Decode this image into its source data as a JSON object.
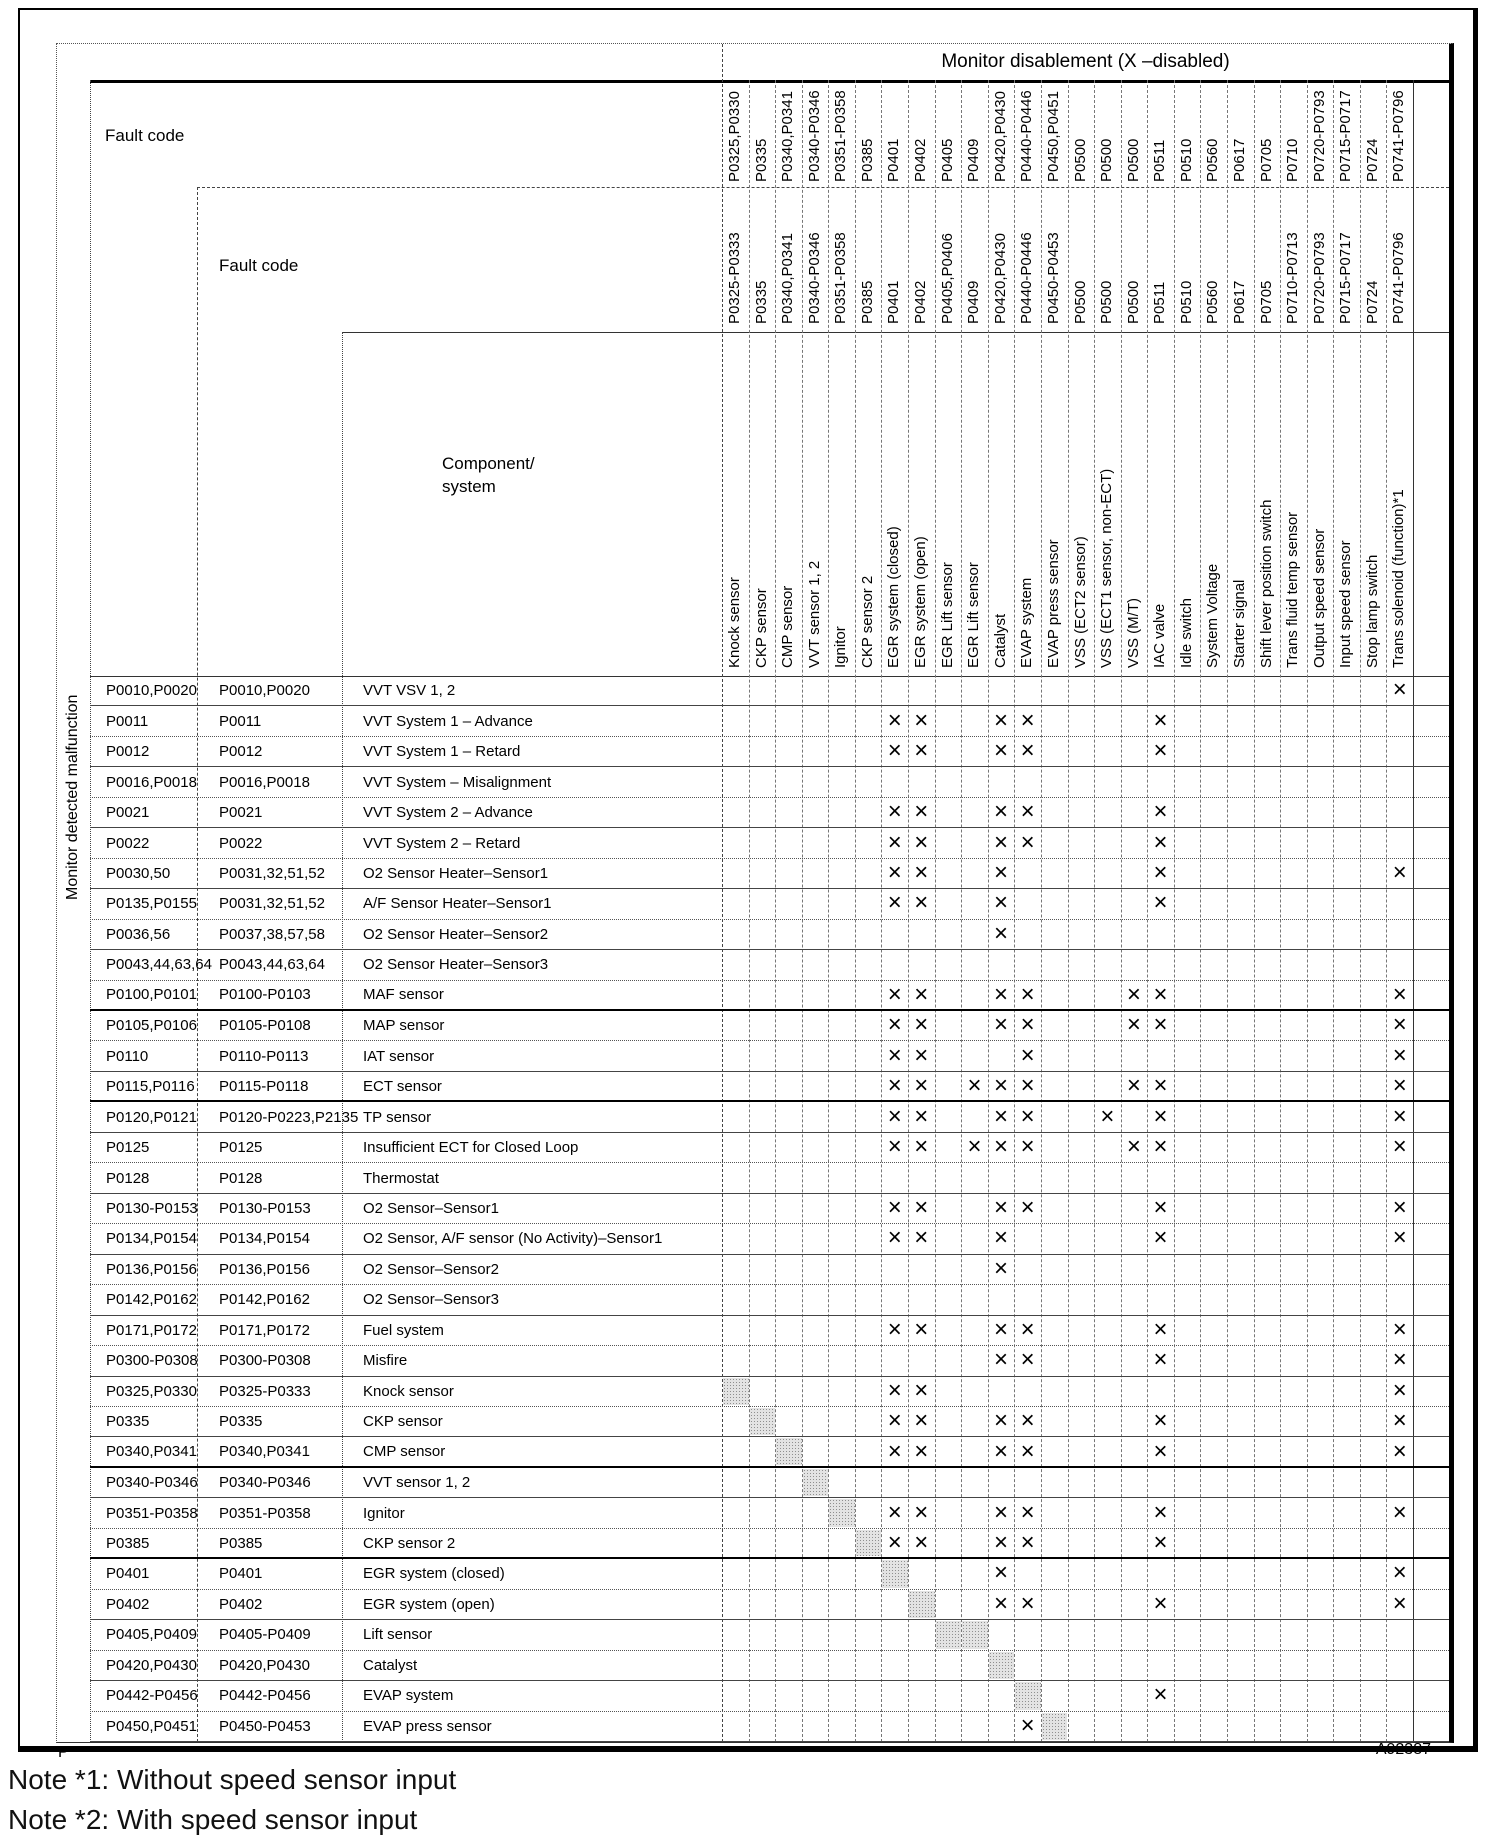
{
  "table": {
    "title": "Monitor disablement (X –disabled)",
    "fault_code_label_1": "Fault code",
    "fault_code_label_2": "Fault code",
    "component_label_line1": "Component/",
    "component_label_line2": "system",
    "left_axis_label": "Monitor detected malfunction",
    "columns": [
      {
        "code_row1": "P0325,P0330",
        "code_row2": "P0325-P0333",
        "name": "Knock sensor"
      },
      {
        "code_row1": "P0335",
        "code_row2": "P0335",
        "name": "CKP sensor"
      },
      {
        "code_row1": "P0340,P0341",
        "code_row2": "P0340,P0341",
        "name": "CMP sensor"
      },
      {
        "code_row1": "P0340-P0346",
        "code_row2": "P0340-P0346",
        "name": "VVT sensor 1, 2"
      },
      {
        "code_row1": "P0351-P0358",
        "code_row2": "P0351-P0358",
        "name": "Ignitor"
      },
      {
        "code_row1": "P0385",
        "code_row2": "P0385",
        "name": "CKP sensor 2"
      },
      {
        "code_row1": "P0401",
        "code_row2": "P0401",
        "name": "EGR system (closed)"
      },
      {
        "code_row1": "P0402",
        "code_row2": "P0402",
        "name": "EGR system (open)"
      },
      {
        "code_row1": "P0405",
        "code_row2": "P0405,P0406",
        "name": "EGR Lift sensor"
      },
      {
        "code_row1": "P0409",
        "code_row2": "P0409",
        "name": "EGR Lift sensor"
      },
      {
        "code_row1": "P0420,P0430",
        "code_row2": "P0420,P0430",
        "name": "Catalyst"
      },
      {
        "code_row1": "P0440-P0446",
        "code_row2": "P0440-P0446",
        "name": "EVAP system"
      },
      {
        "code_row1": "P0450,P0451",
        "code_row2": "P0450-P0453",
        "name": "EVAP press sensor"
      },
      {
        "code_row1": "P0500",
        "code_row2": "P0500",
        "name": "VSS (ECT2 sensor)"
      },
      {
        "code_row1": "P0500",
        "code_row2": "P0500",
        "name": "VSS (ECT1 sensor, non-ECT)"
      },
      {
        "code_row1": "P0500",
        "code_row2": "P0500",
        "name": "VSS (M/T)"
      },
      {
        "code_row1": "P0511",
        "code_row2": "P0511",
        "name": "IAC valve"
      },
      {
        "code_row1": "P0510",
        "code_row2": "P0510",
        "name": "Idle switch"
      },
      {
        "code_row1": "P0560",
        "code_row2": "P0560",
        "name": "System Voltage"
      },
      {
        "code_row1": "P0617",
        "code_row2": "P0617",
        "name": "Starter signal"
      },
      {
        "code_row1": "P0705",
        "code_row2": "P0705",
        "name": "Shift lever position switch"
      },
      {
        "code_row1": "P0710",
        "code_row2": "P0710-P0713",
        "name": "Trans fluid temp sensor"
      },
      {
        "code_row1": "P0720-P0793",
        "code_row2": "P0720-P0793",
        "name": "Output speed sensor"
      },
      {
        "code_row1": "P0715-P0717",
        "code_row2": "P0715-P0717",
        "name": "Input speed sensor"
      },
      {
        "code_row1": "P0724",
        "code_row2": "P0724",
        "name": "Stop lamp switch"
      },
      {
        "code_row1": "P0741-P0796",
        "code_row2": "P0741-P0796",
        "name": "Trans solenoid (function)*1"
      }
    ],
    "rows": [
      {
        "fault1": "P0010,P0020",
        "fault2": "P0010,P0020",
        "component": "VVT VSV 1, 2",
        "x": [
          26
        ],
        "shade": []
      },
      {
        "fault1": "P0011",
        "fault2": "P0011",
        "component": "VVT System 1 – Advance",
        "x": [
          7,
          8,
          11,
          12,
          17
        ],
        "shade": []
      },
      {
        "fault1": "P0012",
        "fault2": "P0012",
        "component": "VVT System 1 – Retard",
        "x": [
          7,
          8,
          11,
          12,
          17
        ],
        "shade": []
      },
      {
        "fault1": "P0016,P0018",
        "fault2": "P0016,P0018",
        "component": "VVT System – Misalignment",
        "x": [],
        "shade": []
      },
      {
        "fault1": "P0021",
        "fault2": "P0021",
        "component": "VVT System 2 – Advance",
        "x": [
          7,
          8,
          11,
          12,
          17
        ],
        "shade": []
      },
      {
        "fault1": "P0022",
        "fault2": "P0022",
        "component": "VVT System 2 – Retard",
        "x": [
          7,
          8,
          11,
          12,
          17
        ],
        "shade": []
      },
      {
        "fault1": "P0030,50",
        "fault2": "P0031,32,51,52",
        "component": "O2 Sensor Heater–Sensor1",
        "x": [
          7,
          8,
          11,
          17,
          26
        ],
        "shade": []
      },
      {
        "fault1": "P0135,P0155",
        "fault2": "P0031,32,51,52",
        "component": "A/F Sensor Heater–Sensor1",
        "x": [
          7,
          8,
          11,
          17
        ],
        "shade": []
      },
      {
        "fault1": "P0036,56",
        "fault2": "P0037,38,57,58",
        "component": "O2 Sensor Heater–Sensor2",
        "x": [
          11
        ],
        "shade": []
      },
      {
        "fault1": "P0043,44,63,64",
        "fault2": "P0043,44,63,64",
        "component": "O2 Sensor Heater–Sensor3",
        "x": [],
        "shade": []
      },
      {
        "fault1": "P0100,P0101",
        "fault2": "P0100-P0103",
        "component": "MAF sensor",
        "x": [
          7,
          8,
          11,
          12,
          16,
          17,
          26
        ],
        "shade": []
      },
      {
        "fault1": "P0105,P0106",
        "fault2": "P0105-P0108",
        "component": "MAP sensor",
        "x": [
          7,
          8,
          11,
          12,
          16,
          17,
          26
        ],
        "shade": []
      },
      {
        "fault1": "P0110",
        "fault2": "P0110-P0113",
        "component": "IAT sensor",
        "x": [
          7,
          8,
          12,
          26
        ],
        "shade": []
      },
      {
        "fault1": "P0115,P0116",
        "fault2": "P0115-P0118",
        "component": "ECT sensor",
        "x": [
          7,
          8,
          10,
          11,
          12,
          16,
          17,
          26
        ],
        "shade": []
      },
      {
        "fault1": "P0120,P0121",
        "fault2": "P0120-P0223,P2135",
        "component": "TP sensor",
        "x": [
          7,
          8,
          11,
          12,
          15,
          17,
          26
        ],
        "shade": []
      },
      {
        "fault1": "P0125",
        "fault2": "P0125",
        "component": "Insufficient ECT for Closed Loop",
        "x": [
          7,
          8,
          10,
          11,
          12,
          16,
          17,
          26
        ],
        "shade": []
      },
      {
        "fault1": "P0128",
        "fault2": "P0128",
        "component": "Thermostat",
        "x": [],
        "shade": []
      },
      {
        "fault1": "P0130-P0153",
        "fault2": "P0130-P0153",
        "component": "O2 Sensor–Sensor1",
        "x": [
          7,
          8,
          11,
          12,
          17,
          26
        ],
        "shade": []
      },
      {
        "fault1": "P0134,P0154",
        "fault2": "P0134,P0154",
        "component": "O2 Sensor, A/F sensor (No Activity)–Sensor1",
        "x": [
          7,
          8,
          11,
          17,
          26
        ],
        "shade": []
      },
      {
        "fault1": "P0136,P0156",
        "fault2": "P0136,P0156",
        "component": "O2 Sensor–Sensor2",
        "x": [
          11
        ],
        "shade": []
      },
      {
        "fault1": "P0142,P0162",
        "fault2": "P0142,P0162",
        "component": "O2 Sensor–Sensor3",
        "x": [],
        "shade": []
      },
      {
        "fault1": "P0171,P0172",
        "fault2": "P0171,P0172",
        "component": "Fuel system",
        "x": [
          7,
          8,
          11,
          12,
          17,
          26
        ],
        "shade": []
      },
      {
        "fault1": "P0300-P0308",
        "fault2": "P0300-P0308",
        "component": "Misfire",
        "x": [
          11,
          12,
          17,
          26
        ],
        "shade": []
      },
      {
        "fault1": "P0325,P0330",
        "fault2": "P0325-P0333",
        "component": "Knock sensor",
        "x": [
          7,
          8,
          26
        ],
        "shade": [
          1
        ]
      },
      {
        "fault1": "P0335",
        "fault2": "P0335",
        "component": "CKP sensor",
        "x": [
          7,
          8,
          11,
          12,
          17,
          26
        ],
        "shade": [
          2
        ]
      },
      {
        "fault1": "P0340,P0341",
        "fault2": "P0340,P0341",
        "component": "CMP sensor",
        "x": [
          7,
          8,
          11,
          12,
          17,
          26
        ],
        "shade": [
          3
        ]
      },
      {
        "fault1": "P0340-P0346",
        "fault2": "P0340-P0346",
        "component": "VVT sensor 1, 2",
        "x": [],
        "shade": [
          4
        ]
      },
      {
        "fault1": "P0351-P0358",
        "fault2": "P0351-P0358",
        "component": "Ignitor",
        "x": [
          7,
          8,
          11,
          12,
          17,
          26
        ],
        "shade": [
          5
        ]
      },
      {
        "fault1": "P0385",
        "fault2": "P0385",
        "component": "CKP sensor 2",
        "x": [
          7,
          8,
          11,
          12,
          17
        ],
        "shade": [
          6
        ]
      },
      {
        "fault1": "P0401",
        "fault2": "P0401",
        "component": "EGR system (closed)",
        "x": [
          11,
          26
        ],
        "shade": [
          7
        ]
      },
      {
        "fault1": "P0402",
        "fault2": "P0402",
        "component": "EGR system (open)",
        "x": [
          11,
          12,
          17,
          26
        ],
        "shade": [
          8
        ]
      },
      {
        "fault1": "P0405,P0409",
        "fault2": "P0405-P0409",
        "component": "Lift sensor",
        "x": [],
        "shade": [
          9,
          10
        ]
      },
      {
        "fault1": "P0420,P0430",
        "fault2": "P0420,P0430",
        "component": "Catalyst",
        "x": [],
        "shade": [
          11
        ]
      },
      {
        "fault1": "P0442-P0456",
        "fault2": "P0442-P0456",
        "component": "EVAP system",
        "x": [
          17
        ],
        "shade": [
          12
        ]
      },
      {
        "fault1": "P0450,P0451",
        "fault2": "P0450-P0453",
        "component": "EVAP press sensor",
        "x": [
          12
        ],
        "shade": [
          13
        ]
      }
    ],
    "x_mark_glyph": "×"
  },
  "footer": {
    "page_letter": "P",
    "figure_id": "A92387"
  },
  "notes": [
    "Note *1: Without speed sensor input",
    "Note *2: With speed sensor input"
  ]
}
